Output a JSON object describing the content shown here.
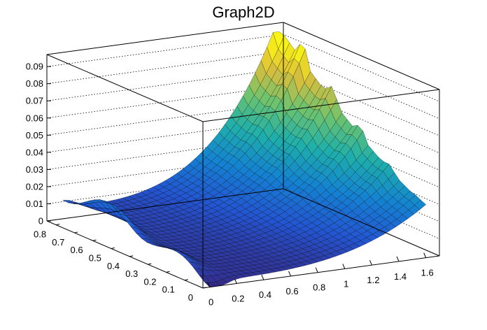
{
  "chart_data": {
    "type": "surface",
    "title": "Graph2D",
    "xlabel": "",
    "ylabel": "",
    "zlabel": "",
    "xlim": [
      -0.05,
      1.7
    ],
    "ylim": [
      0,
      0.85
    ],
    "zlim": [
      0,
      0.097
    ],
    "x_ticks": [
      "0",
      "0.2",
      "0.4",
      "0.6",
      "0.8",
      "1",
      "1.2",
      "1.4",
      "1.6"
    ],
    "y_ticks": [
      "0",
      "0.1",
      "0.2",
      "0.3",
      "0.4",
      "0.5",
      "0.6",
      "0.7",
      "0.8"
    ],
    "z_ticks": [
      "0",
      "0.01",
      "0.02",
      "0.03",
      "0.04",
      "0.05",
      "0.06",
      "0.07",
      "0.08",
      "0.09"
    ],
    "x_tick_values": [
      0,
      0.2,
      0.4,
      0.6,
      0.8,
      1.0,
      1.2,
      1.4,
      1.6
    ],
    "y_tick_values": [
      0,
      0.1,
      0.2,
      0.3,
      0.4,
      0.5,
      0.6,
      0.7,
      0.8
    ],
    "z_tick_values": [
      0,
      0.01,
      0.02,
      0.03,
      0.04,
      0.05,
      0.06,
      0.07,
      0.08,
      0.09
    ],
    "grid": true,
    "colormap": "viridis-like (blue to yellow)",
    "surface": {
      "x_range": [
        0,
        1.6
      ],
      "y_range": [
        0,
        0.8
      ],
      "z_min_approx": 0.0,
      "z_max_approx": 0.09,
      "description_points": [
        {
          "x": 0,
          "y": 0.8,
          "z": 0.01
        },
        {
          "x": 0,
          "y": 0.6,
          "z": 0.018
        },
        {
          "x": 0,
          "y": 0.4,
          "z": 0.02
        },
        {
          "x": 0,
          "y": 0.0,
          "z": 0.0
        },
        {
          "x": 0.8,
          "y": 0.4,
          "z": 0.008
        },
        {
          "x": 1.6,
          "y": 0.0,
          "z": 0.03
        },
        {
          "x": 1.6,
          "y": 0.4,
          "z": 0.06
        },
        {
          "x": 1.6,
          "y": 0.8,
          "z": 0.09
        }
      ]
    }
  },
  "colors": {
    "low": "#3b4cc0",
    "mid": "#20a386",
    "high": "#fde725",
    "frame": "#000000",
    "background": "#ffffff"
  }
}
